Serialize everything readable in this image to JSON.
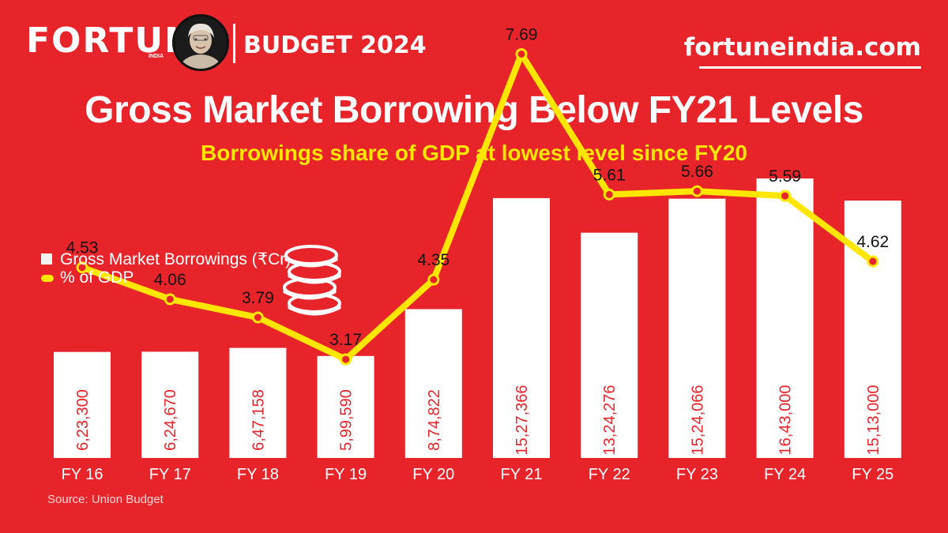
{
  "header": {
    "brand": "FORTUNE",
    "brand_sub": "INDIA",
    "edition": "BUDGET 2024",
    "site": "fortuneindia.com"
  },
  "colors": {
    "background": "#e8242b",
    "bar": "#ffffff",
    "line": "#ffe600",
    "marker": "#e8242b",
    "bar_label": "#e8242b"
  },
  "icons": [
    "avatar-portrait",
    "coin-stack-icon"
  ],
  "chart_data": {
    "type": "bar",
    "title": "Gross Market Borrowing Below FY21 Levels",
    "subtitle": "Borrowings share of GDP at lowest level since FY20",
    "categories": [
      "FY 16",
      "FY 17",
      "FY 18",
      "FY 19",
      "FY 20",
      "FY 21",
      "FY 22",
      "FY 23",
      "FY 24",
      "FY 25"
    ],
    "series": [
      {
        "name": "Gross Market Borrowings (₹Cr)",
        "kind": "bar",
        "values": [
          623300,
          624670,
          647158,
          599590,
          874822,
          1527366,
          1324276,
          1524066,
          1643000,
          1513000
        ],
        "labels": [
          "6,23,300",
          "6,24,670",
          "6,47,158",
          "5,99,590",
          "8,74,822",
          "15,27,366",
          "13,24,276",
          "15,24,066",
          "16,43,000",
          "15,13,000"
        ]
      },
      {
        "name": "% of GDP",
        "kind": "line",
        "values": [
          4.53,
          4.06,
          3.79,
          3.17,
          4.35,
          7.69,
          5.61,
          5.66,
          5.59,
          4.62
        ],
        "labels": [
          "4.53",
          "4.06",
          "3.79",
          "3.17",
          "4.35",
          "7.69",
          "5.61",
          "5.66",
          "5.59",
          "4.62"
        ]
      }
    ],
    "legend_position": "left-middle",
    "grid": false
  },
  "source": "Source: Union Budget"
}
